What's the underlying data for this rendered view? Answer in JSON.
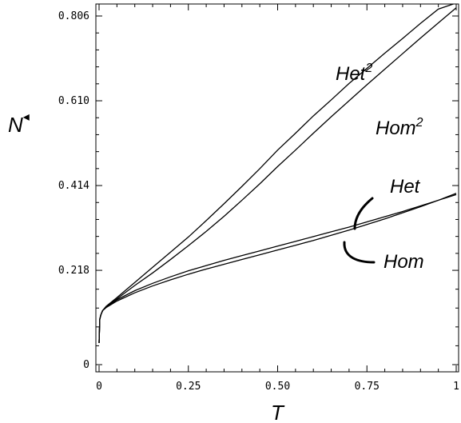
{
  "chart_data": {
    "type": "line",
    "xlabel": "T",
    "ylabel": "N",
    "ylabel_marker": "◂",
    "xlim": [
      0,
      1
    ],
    "ylim": [
      0,
      0.806
    ],
    "xticks": [
      {
        "value": 0,
        "label": "0"
      },
      {
        "value": 0.25,
        "label": "0.25"
      },
      {
        "value": 0.5,
        "label": "0.50"
      },
      {
        "value": 0.75,
        "label": "0.75"
      },
      {
        "value": 1,
        "label": "1"
      }
    ],
    "yticks": [
      {
        "value": 0,
        "label": "0"
      },
      {
        "value": 0.218,
        "label": "0.218"
      },
      {
        "value": 0.414,
        "label": "0.414"
      },
      {
        "value": 0.61,
        "label": "0.610"
      },
      {
        "value": 0.806,
        "label": "0.806"
      }
    ],
    "grid": false,
    "series": [
      {
        "name": "Het",
        "name_superscript": "2",
        "x": [
          0,
          0.002,
          0.005,
          0.01,
          0.02,
          0.05,
          0.1,
          0.15,
          0.2,
          0.25,
          0.3,
          0.35,
          0.4,
          0.45,
          0.5,
          0.55,
          0.6,
          0.65,
          0.7,
          0.75,
          0.8,
          0.85,
          0.9,
          0.95,
          1.0
        ],
        "y": [
          0.05,
          0.105,
          0.115,
          0.125,
          0.135,
          0.155,
          0.19,
          0.225,
          0.26,
          0.295,
          0.333,
          0.372,
          0.412,
          0.453,
          0.496,
          0.535,
          0.575,
          0.612,
          0.65,
          0.685,
          0.72,
          0.754,
          0.789,
          0.822,
          0.856
        ]
      },
      {
        "name": "Hom",
        "name_superscript": "2",
        "x": [
          0,
          0.002,
          0.005,
          0.01,
          0.02,
          0.05,
          0.1,
          0.15,
          0.2,
          0.25,
          0.3,
          0.35,
          0.4,
          0.45,
          0.5,
          0.55,
          0.6,
          0.65,
          0.7,
          0.75,
          0.8,
          0.85,
          0.9,
          0.95,
          1.0
        ],
        "y": [
          0.05,
          0.105,
          0.115,
          0.125,
          0.134,
          0.152,
          0.183,
          0.212,
          0.243,
          0.275,
          0.308,
          0.343,
          0.38,
          0.418,
          0.458,
          0.496,
          0.535,
          0.573,
          0.61,
          0.647,
          0.683,
          0.719,
          0.755,
          0.79,
          0.825
        ]
      },
      {
        "name": "Het",
        "x": [
          0,
          0.002,
          0.005,
          0.01,
          0.02,
          0.05,
          0.1,
          0.15,
          0.2,
          0.25,
          0.3,
          0.35,
          0.4,
          0.45,
          0.5,
          0.55,
          0.6,
          0.65,
          0.7,
          0.75,
          0.8,
          0.85,
          0.9,
          0.95,
          1.0
        ],
        "y": [
          0.05,
          0.105,
          0.115,
          0.125,
          0.133,
          0.15,
          0.171,
          0.188,
          0.203,
          0.217,
          0.229,
          0.241,
          0.252,
          0.263,
          0.274,
          0.285,
          0.296,
          0.307,
          0.318,
          0.33,
          0.342,
          0.354,
          0.367,
          0.38,
          0.393
        ]
      },
      {
        "name": "Hom",
        "x": [
          0,
          0.002,
          0.005,
          0.01,
          0.02,
          0.05,
          0.1,
          0.15,
          0.2,
          0.25,
          0.3,
          0.35,
          0.4,
          0.45,
          0.5,
          0.55,
          0.6,
          0.65,
          0.7,
          0.75,
          0.8,
          0.85,
          0.9,
          0.95,
          1.0
        ],
        "y": [
          0.05,
          0.105,
          0.115,
          0.125,
          0.132,
          0.147,
          0.166,
          0.182,
          0.196,
          0.209,
          0.221,
          0.232,
          0.243,
          0.254,
          0.265,
          0.276,
          0.287,
          0.299,
          0.311,
          0.324,
          0.337,
          0.351,
          0.365,
          0.38,
          0.396
        ]
      }
    ]
  }
}
